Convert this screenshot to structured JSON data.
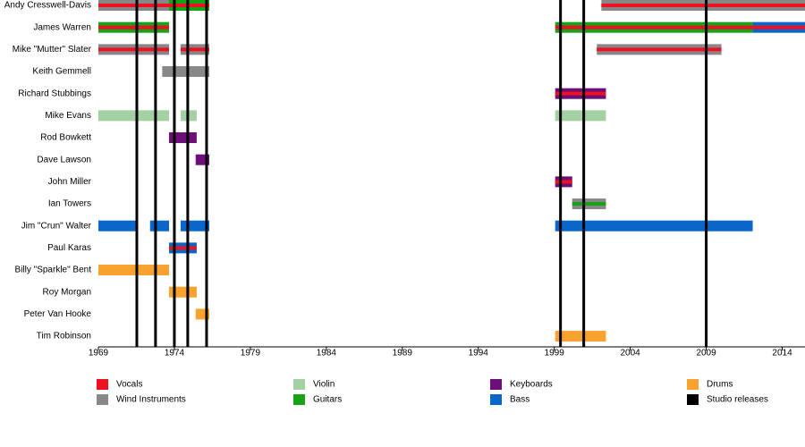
{
  "chart_data": {
    "type": "timeline",
    "xlim": [
      1969,
      2015.5
    ],
    "xticks": [
      1969,
      1974,
      1979,
      1984,
      1989,
      1994,
      1999,
      2004,
      2009,
      2014
    ],
    "roles": [
      {
        "name": "Vocals",
        "color": "#ee1122"
      },
      {
        "name": "Wind Instruments",
        "color": "#888888"
      },
      {
        "name": "Violin",
        "color": "#a3d1a3"
      },
      {
        "name": "Guitars",
        "color": "#17a317"
      },
      {
        "name": "Keyboards",
        "color": "#6d0f78"
      },
      {
        "name": "Bass",
        "color": "#0b66c9"
      },
      {
        "name": "Drums",
        "color": "#f9a230"
      },
      {
        "name": "Studio releases",
        "color": "#000000"
      }
    ],
    "releases": [
      1971.53,
      1972.76,
      1974.0,
      1974.88,
      1976.12,
      1999.41,
      2000.94,
      2009.0
    ],
    "members": [
      {
        "name": "Andy Cresswell-Davis",
        "periods": [
          {
            "start": 1969,
            "end": 1973.65,
            "roles": [
              "Wind Instruments",
              "Vocals"
            ]
          },
          {
            "start": 1973.65,
            "end": 1976.3,
            "roles": [
              "Guitars",
              "Vocals"
            ]
          },
          {
            "start": 2002.1,
            "end": 2015.5,
            "roles": [
              "Wind Instruments",
              "Vocals"
            ]
          }
        ]
      },
      {
        "name": "James Warren",
        "periods": [
          {
            "start": 1969,
            "end": 1973.65,
            "roles": [
              "Guitars",
              "Vocals"
            ]
          },
          {
            "start": 1999.06,
            "end": 2012.06,
            "roles": [
              "Guitars",
              "Vocals"
            ]
          },
          {
            "start": 2012.06,
            "end": 2015.5,
            "roles": [
              "Bass",
              "Vocals"
            ]
          }
        ]
      },
      {
        "name": "Mike \"Mutter\" Slater",
        "periods": [
          {
            "start": 1969,
            "end": 1973.65,
            "roles": [
              "Wind Instruments",
              "Vocals"
            ]
          },
          {
            "start": 1974.41,
            "end": 1976.3,
            "roles": [
              "Wind Instruments",
              "Vocals"
            ]
          },
          {
            "start": 2001.8,
            "end": 2010.0,
            "roles": [
              "Wind Instruments",
              "Vocals"
            ]
          }
        ]
      },
      {
        "name": "Keith Gemmell",
        "periods": [
          {
            "start": 1973.2,
            "end": 1976.3,
            "roles": [
              "Wind Instruments"
            ]
          }
        ]
      },
      {
        "name": "Richard Stubbings",
        "periods": [
          {
            "start": 1999.06,
            "end": 2002.4,
            "roles": [
              "Keyboards",
              "Vocals"
            ]
          }
        ]
      },
      {
        "name": "Mike Evans",
        "periods": [
          {
            "start": 1969,
            "end": 1973.65,
            "roles": [
              "Violin"
            ]
          },
          {
            "start": 1974.41,
            "end": 1975.47,
            "roles": [
              "Violin"
            ]
          },
          {
            "start": 1999.06,
            "end": 2002.4,
            "roles": [
              "Violin"
            ]
          }
        ]
      },
      {
        "name": "Rod Bowkett",
        "periods": [
          {
            "start": 1973.65,
            "end": 1975.47,
            "roles": [
              "Keyboards"
            ]
          }
        ]
      },
      {
        "name": "Dave Lawson",
        "periods": [
          {
            "start": 1975.4,
            "end": 1976.3,
            "roles": [
              "Keyboards"
            ]
          }
        ]
      },
      {
        "name": "John Miller",
        "periods": [
          {
            "start": 1999.06,
            "end": 2000.18,
            "roles": [
              "Keyboards",
              "Vocals"
            ]
          }
        ]
      },
      {
        "name": "Ian Towers",
        "periods": [
          {
            "start": 2000.18,
            "end": 2002.4,
            "roles": [
              "Wind Instruments",
              "Guitars"
            ]
          }
        ]
      },
      {
        "name": "Jim \"Crun\" Walter",
        "periods": [
          {
            "start": 1969,
            "end": 1971.53,
            "roles": [
              "Bass"
            ]
          },
          {
            "start": 1972.4,
            "end": 1973.65,
            "roles": [
              "Bass"
            ]
          },
          {
            "start": 1974.41,
            "end": 1976.3,
            "roles": [
              "Bass"
            ]
          },
          {
            "start": 1999.06,
            "end": 2012.06,
            "roles": [
              "Bass"
            ]
          }
        ]
      },
      {
        "name": "Paul Karas",
        "periods": [
          {
            "start": 1973.65,
            "end": 1975.47,
            "roles": [
              "Bass",
              "Vocals"
            ]
          }
        ]
      },
      {
        "name": "Billy \"Sparkle\" Bent",
        "periods": [
          {
            "start": 1969,
            "end": 1973.65,
            "roles": [
              "Drums"
            ]
          }
        ]
      },
      {
        "name": "Roy Morgan",
        "periods": [
          {
            "start": 1973.65,
            "end": 1975.47,
            "roles": [
              "Drums"
            ]
          }
        ]
      },
      {
        "name": "Peter Van Hooke",
        "periods": [
          {
            "start": 1975.4,
            "end": 1976.3,
            "roles": [
              "Drums"
            ]
          }
        ]
      },
      {
        "name": "Tim Robinson",
        "periods": [
          {
            "start": 1999.06,
            "end": 2002.4,
            "roles": [
              "Drums"
            ]
          }
        ]
      }
    ]
  }
}
